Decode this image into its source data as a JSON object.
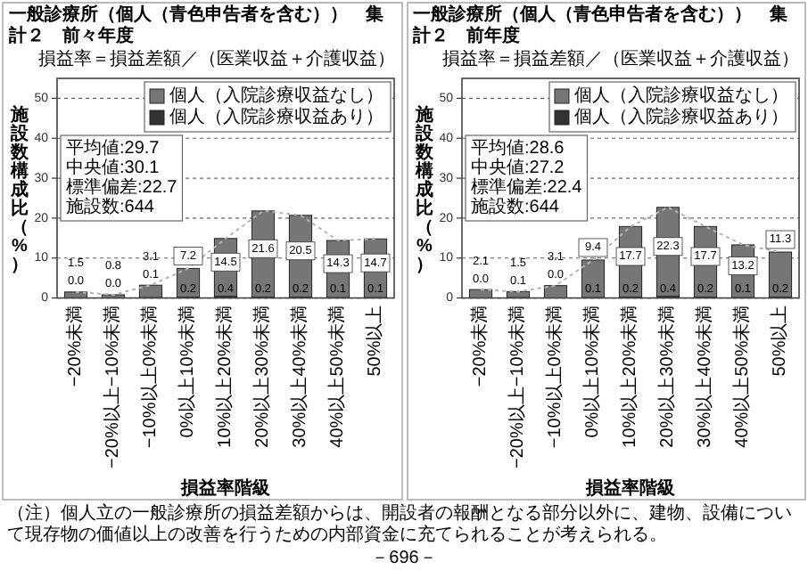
{
  "chart_data": [
    {
      "type": "bar",
      "stacked": true,
      "title": "一般診療所（個人（青色申告者を含む））　集計２　前々年度",
      "subtitle": "損益率＝損益差額／（医業収益＋介護収益）",
      "xlabel": "損益率階級",
      "ylabel": "施設数構成比（%）",
      "categories": [
        "−20%未満",
        "−20%以上−10%未満",
        "−10%以上0%未満",
        "0%以上10%未満",
        "10%以上20%未満",
        "20%以上30%未満",
        "30%以上40%未満",
        "40%以上50%未満",
        "50%以上"
      ],
      "series": [
        {
          "name": "個人（入院診療収益あり）",
          "color": "#333333",
          "values": [
            0.0,
            0.0,
            0.1,
            0.2,
            0.4,
            0.2,
            0.2,
            0.1,
            0.1
          ],
          "value_labels": [
            "0.0",
            "0.0",
            "0.1",
            "0.2",
            "0.4",
            "0.2",
            "0.2",
            "0.1",
            "0.1"
          ]
        },
        {
          "name": "個人（入院診療収益なし）",
          "color": "#767676",
          "values": [
            1.5,
            0.8,
            3.1,
            7.2,
            14.5,
            21.6,
            20.5,
            14.3,
            14.7
          ],
          "value_labels": [
            "1.5",
            "0.8",
            "3.1",
            "7.2",
            "14.5",
            "21.6",
            "20.5",
            "14.3",
            "14.7"
          ]
        },
        {
          "type": "line",
          "color": "#b4b4b4",
          "line_style": "dotted",
          "values": [
            1.5,
            0.8,
            3.2,
            7.4,
            14.9,
            21.8,
            20.7,
            14.4,
            14.8
          ]
        }
      ],
      "ylim": [
        0,
        55
      ],
      "yticks": [
        0,
        10,
        20,
        30,
        40,
        50
      ],
      "grid": "y",
      "legend": "top right",
      "annotations": [
        "平均値:29.7",
        "中央値:30.1",
        "標準偏差:22.7",
        "施設数:644"
      ]
    },
    {
      "type": "bar",
      "stacked": true,
      "title": "一般診療所（個人（青色申告者を含む））　集計２　前年度",
      "subtitle": "損益率＝損益差額／（医業収益＋介護収益）",
      "xlabel": "損益率階級",
      "ylabel": "施設数構成比（%）",
      "categories": [
        "−20%未満",
        "−20%以上−10%未満",
        "−10%以上0%未満",
        "0%以上10%未満",
        "10%以上20%未満",
        "20%以上30%未満",
        "30%以上40%未満",
        "40%以上50%未満",
        "50%以上"
      ],
      "series": [
        {
          "name": "個人（入院診療収益あり）",
          "color": "#333333",
          "values": [
            0.0,
            0.1,
            0.0,
            0.1,
            0.2,
            0.4,
            0.2,
            0.1,
            0.2
          ],
          "value_labels": [
            "0.0",
            "0.1",
            "0.0",
            "0.1",
            "0.2",
            "0.4",
            "0.2",
            "0.1",
            "0.2"
          ]
        },
        {
          "name": "個人（入院診療収益なし）",
          "color": "#767676",
          "values": [
            2.1,
            1.5,
            3.1,
            9.4,
            17.7,
            22.3,
            17.7,
            13.2,
            11.3
          ],
          "value_labels": [
            "2.1",
            "1.5",
            "3.1",
            "9.4",
            "17.7",
            "22.3",
            "17.7",
            "13.2",
            "11.3"
          ]
        },
        {
          "type": "line",
          "color": "#b4b4b4",
          "line_style": "dotted",
          "values": [
            2.1,
            1.6,
            3.1,
            9.5,
            17.9,
            22.7,
            17.9,
            13.3,
            11.5
          ]
        }
      ],
      "ylim": [
        0,
        55
      ],
      "yticks": [
        0,
        10,
        20,
        30,
        40,
        50
      ],
      "grid": "y",
      "legend": "top right",
      "annotations": [
        "平均値:28.6",
        "中央値:27.2",
        "標準偏差:22.4",
        "施設数:644",
        "（注）個人立の一般診療所の損益差額からは、開設者の報酬となる部分以外に、建物、設備について現存物の価値以上の改善を行うための内部資金に充てられることが考えられる。",
        "－696－"
      ]
    }
  ]
}
